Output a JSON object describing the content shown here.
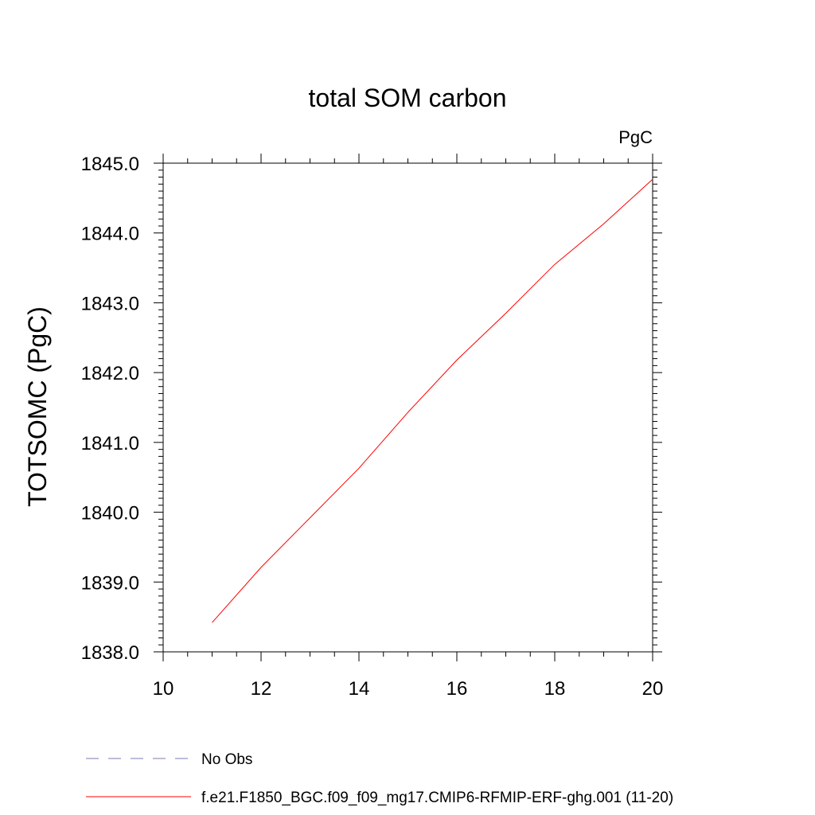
{
  "chart_data": {
    "type": "line",
    "title": "total SOM carbon",
    "units_label": "PgC",
    "ylabel": "TOTSOMC  (PgC)",
    "xlabel": "",
    "xlim": [
      10,
      20
    ],
    "ylim": [
      1838.0,
      1845.0
    ],
    "x_ticks": [
      10,
      12,
      14,
      16,
      18,
      20
    ],
    "x_tick_labels": [
      "10",
      "12",
      "14",
      "16",
      "18",
      "20"
    ],
    "y_ticks": [
      1838.0,
      1839.0,
      1840.0,
      1841.0,
      1842.0,
      1843.0,
      1844.0,
      1845.0
    ],
    "y_tick_labels": [
      "1838.0",
      "1839.0",
      "1840.0",
      "1841.0",
      "1842.0",
      "1843.0",
      "1844.0",
      "1845.0"
    ],
    "grid": false,
    "legend_position": "bottom",
    "series": [
      {
        "name": "f.e21.F1850_BGC.f09_f09_mg17.CMIP6-RFMIP-ERF-ghg.001 (11-20)",
        "color": "#ff0000",
        "style": "solid",
        "x": [
          11,
          12,
          13,
          14,
          15,
          16,
          17,
          18,
          19,
          20
        ],
        "values": [
          1838.42,
          1839.21,
          1839.92,
          1840.63,
          1841.43,
          1842.18,
          1842.85,
          1843.55,
          1844.13,
          1844.77
        ]
      },
      {
        "name": "No Obs",
        "color": "#7b7bb5",
        "style": "dashed",
        "x": [],
        "values": []
      }
    ]
  }
}
